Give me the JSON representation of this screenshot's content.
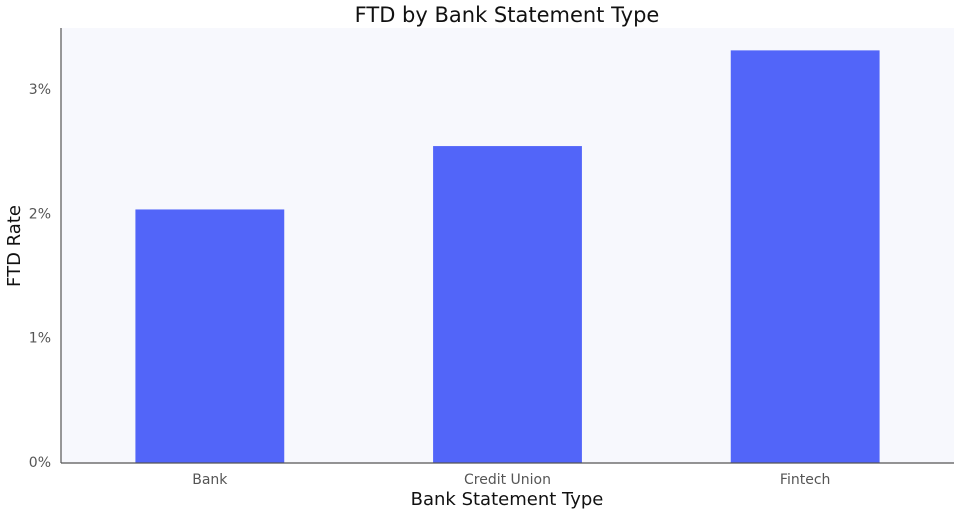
{
  "chart_data": {
    "type": "bar",
    "title": "FTD by Bank Statement Type",
    "x_label": "Bank Statement Type",
    "y_label": "FTD Rate",
    "categories": [
      "Bank",
      "Credit Union",
      "Fintech"
    ],
    "values": [
      2.04,
      2.55,
      3.32
    ],
    "color": "#5265f9",
    "ylim": [
      0,
      3.5
    ],
    "yticks": [
      {
        "value": 0,
        "label": "0%"
      },
      {
        "value": 1,
        "label": "1%"
      },
      {
        "value": 2,
        "label": "2%"
      },
      {
        "value": 3,
        "label": "3%"
      }
    ],
    "grid": false
  }
}
